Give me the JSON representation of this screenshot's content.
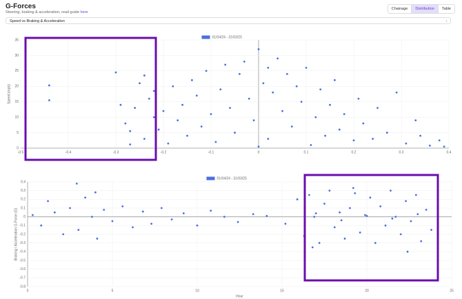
{
  "header": {
    "title": "G-Forces",
    "subtitle": "Steering, braking & acceleration, read guide",
    "link": "here"
  },
  "tabs": [
    "Chainage",
    "Distribution",
    "Table"
  ],
  "active_tab": 1,
  "select": {
    "value": "Speed vs Braking & Acceleration"
  },
  "chart_data": [
    {
      "type": "scatter",
      "ylabel": "Speed (mph)",
      "xlim": [
        -0.5,
        0.4
      ],
      "xticks": [
        -0.5,
        -0.4,
        -0.3,
        -0.2,
        -0.1,
        0,
        0.1,
        0.2,
        0.3,
        0.4
      ],
      "ylim": [
        0,
        35
      ],
      "yticks": [
        0,
        5,
        10,
        15,
        20,
        25,
        30,
        35
      ],
      "grid": true,
      "series": [
        {
          "name": "01/04/24 - 31/03/25",
          "color": "#4b6fe0",
          "x": [
            -0.44,
            -0.44,
            -0.3,
            -0.29,
            -0.28,
            -0.27,
            -0.27,
            -0.26,
            -0.25,
            -0.24,
            -0.24,
            -0.23,
            -0.22,
            -0.22,
            -0.21,
            -0.2,
            -0.19,
            -0.18,
            -0.17,
            -0.16,
            -0.15,
            -0.14,
            -0.13,
            -0.12,
            -0.11,
            -0.1,
            -0.09,
            -0.08,
            -0.07,
            -0.06,
            -0.05,
            -0.04,
            -0.03,
            -0.02,
            -0.01,
            0,
            0,
            0.01,
            0.02,
            0.02,
            0.03,
            0.04,
            0.05,
            0.06,
            0.07,
            0.08,
            0.09,
            0.1,
            0.11,
            0.12,
            0.13,
            0.14,
            0.15,
            0.16,
            0.17,
            0.18,
            0.2,
            0.21,
            0.22,
            0.24,
            0.25,
            0.27,
            0.29,
            0.31,
            0.33,
            0.34,
            0.36,
            0.38,
            0.39
          ],
          "values": [
            20.3,
            15.5,
            24.5,
            14,
            8,
            5.5,
            1.2,
            13,
            21,
            23.5,
            3,
            16,
            18.5,
            10,
            6,
            12,
            1.5,
            20,
            9,
            14,
            4,
            22,
            17,
            7,
            25,
            11,
            2,
            19,
            27,
            13,
            5,
            24,
            28,
            16,
            9,
            32,
            0.5,
            21,
            26,
            3,
            18,
            29,
            12,
            24,
            7,
            20,
            15,
            26,
            1,
            10,
            19,
            4,
            14,
            22,
            6,
            11,
            2.5,
            16,
            8,
            3,
            13,
            5,
            18,
            1.5,
            9,
            4,
            0.8,
            2.5,
            0.5
          ]
        }
      ]
    },
    {
      "type": "scatter",
      "xlabel": "Hour",
      "ylabel": "Braking / Acceleration G-Force (G)",
      "xlim": [
        0,
        25
      ],
      "xticks": [
        0,
        5,
        10,
        15,
        20,
        25
      ],
      "ylim": [
        -0.8,
        0.4
      ],
      "yticks": [
        0.4,
        0.3,
        0.2,
        0.1,
        0,
        -0.1,
        -0.2,
        -0.3,
        -0.4,
        -0.5,
        -0.6,
        -0.7,
        -0.8
      ],
      "grid": true,
      "series": [
        {
          "name": "01/04/24 - 31/03/25",
          "color": "#4b6fe0",
          "x": [
            0.3,
            0.8,
            1.2,
            1.6,
            2.1,
            2.5,
            2.9,
            3.0,
            3.4,
            3.8,
            4.0,
            4.1,
            4.5,
            5.0,
            5.6,
            6.2,
            6.8,
            7.3,
            7.9,
            8.5,
            9.2,
            10.0,
            10.8,
            11.6,
            12.4,
            13.3,
            14.1,
            15.2,
            15.9,
            16.3,
            16.6,
            16.9,
            17.2,
            17.5,
            17.8,
            18.1,
            18.4,
            18.7,
            19.0,
            19.3,
            19.6,
            19.9,
            20.2,
            20.5,
            20.8,
            21.1,
            21.4,
            21.7,
            22.0,
            22.3,
            22.6,
            22.9,
            23.2,
            23.5,
            23.8,
            17.0,
            18.5,
            20.0,
            21.5,
            23.0,
            16.8,
            19.2,
            22.4
          ],
          "values": [
            0.02,
            -0.1,
            0.18,
            0.05,
            -0.2,
            0.1,
            0.38,
            -0.15,
            0.22,
            0.0,
            0.28,
            -0.25,
            0.08,
            -0.05,
            0.12,
            -0.12,
            0.06,
            -0.08,
            0.1,
            -0.03,
            0.04,
            -0.1,
            0.07,
            0.0,
            -0.06,
            0.03,
            0.01,
            -0.08,
            0.2,
            -0.22,
            0.25,
            0.0,
            -0.3,
            0.15,
            0.3,
            -0.12,
            0.05,
            -0.25,
            0.1,
            0.27,
            -0.18,
            0.02,
            0.22,
            -0.3,
            0.12,
            -0.1,
            0.3,
            0.0,
            -0.2,
            0.18,
            -0.05,
            0.25,
            -0.28,
            0.08,
            -0.15,
            0.04,
            -0.04,
            0.01,
            -0.02,
            0.03,
            -0.35,
            0.33,
            -0.4
          ]
        }
      ]
    }
  ]
}
